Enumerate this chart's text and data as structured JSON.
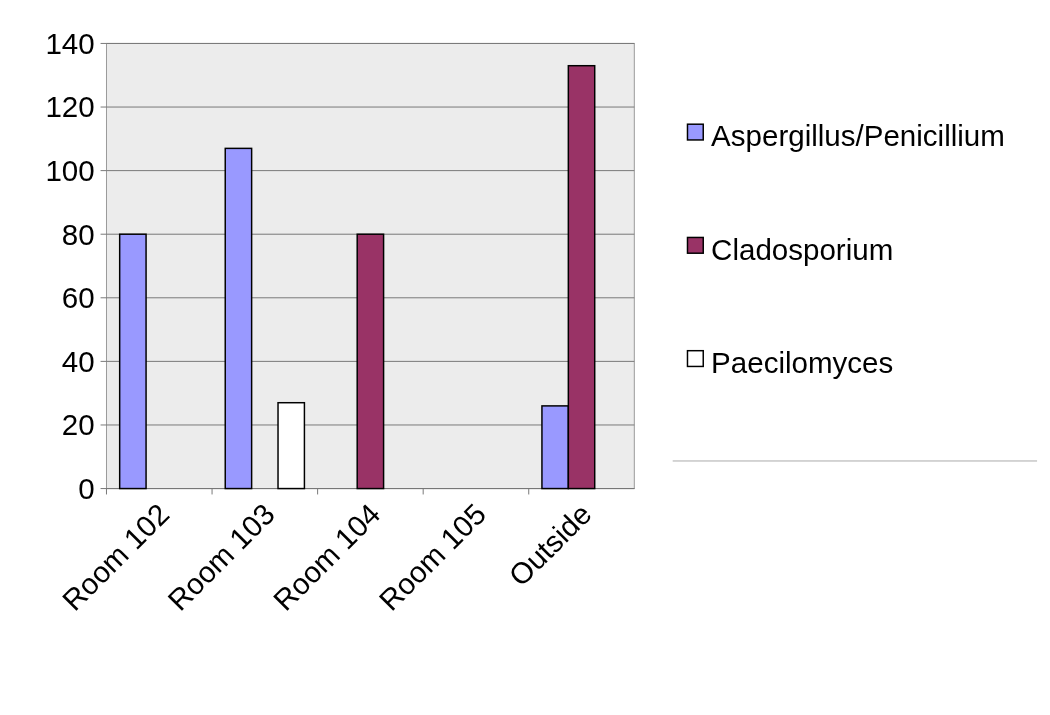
{
  "chart_data": {
    "type": "bar",
    "categories": [
      "Room 102",
      "Room 103",
      "Room 104",
      "Room 105",
      "Outside"
    ],
    "series": [
      {
        "name": "Aspergillus/Penicillium",
        "color": "#9999ff",
        "values": [
          80,
          107,
          null,
          null,
          26
        ]
      },
      {
        "name": "Cladosporium",
        "color": "#993366",
        "values": [
          null,
          null,
          80,
          null,
          133
        ]
      },
      {
        "name": "Paecilomyces",
        "color": "#ffffff",
        "values": [
          null,
          27,
          null,
          null,
          null
        ]
      }
    ],
    "ylim": [
      0,
      140
    ],
    "yticks": [
      0,
      20,
      40,
      60,
      80,
      100,
      120,
      140
    ],
    "grid": "y",
    "legend": "right"
  }
}
